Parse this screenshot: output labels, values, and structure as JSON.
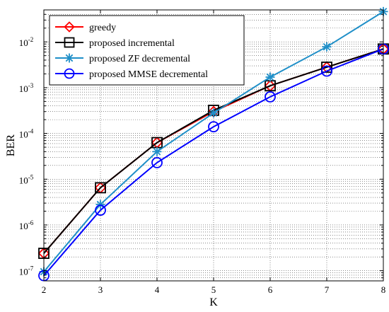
{
  "chart_data": {
    "type": "line",
    "xlabel": "K",
    "ylabel": "BER",
    "x": [
      2,
      3,
      4,
      5,
      6,
      7,
      8
    ],
    "xlim": [
      2,
      8
    ],
    "ylim": [
      6e-08,
      0.05
    ],
    "yscale": "log",
    "grid": "on (major and minor, dotted)",
    "legend_position": "top-left",
    "x_ticks": [
      "2",
      "3",
      "4",
      "5",
      "6",
      "7",
      "8"
    ],
    "y_ticks": [
      {
        "base": "10",
        "exp": "-7"
      },
      {
        "base": "10",
        "exp": "-6"
      },
      {
        "base": "10",
        "exp": "-5"
      },
      {
        "base": "10",
        "exp": "-4"
      },
      {
        "base": "10",
        "exp": "-3"
      },
      {
        "base": "10",
        "exp": "-2"
      }
    ],
    "series": [
      {
        "name": "greedy",
        "color": "#ff0000",
        "marker": "diamond",
        "values": [
          2.4e-07,
          6.5e-06,
          6.3e-05,
          0.0003,
          0.0011,
          0.0028,
          0.007
        ]
      },
      {
        "name": "proposed incremental",
        "color": "#000000",
        "marker": "square",
        "values": [
          2.4e-07,
          6.5e-06,
          6.3e-05,
          0.00032,
          0.0011,
          0.0028,
          0.007
        ]
      },
      {
        "name": "proposed ZF decremental",
        "color": "#1f8fc8",
        "marker": "asterisk",
        "values": [
          9.5e-08,
          2.8e-06,
          4e-05,
          0.00028,
          0.0017,
          0.0078,
          0.046
        ]
      },
      {
        "name": "proposed MMSE decremental",
        "color": "#0000ff",
        "marker": "circle",
        "values": [
          7.8e-08,
          2.1e-06,
          2.3e-05,
          0.00014,
          0.00063,
          0.0023,
          0.007
        ]
      }
    ]
  }
}
